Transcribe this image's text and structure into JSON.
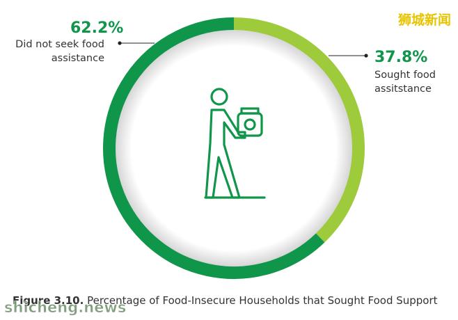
{
  "chart_data": {
    "type": "pie",
    "donut": true,
    "categories": [
      "Sought food assitstance",
      "Did not seek food assistance"
    ],
    "values": [
      37.8,
      62.2
    ],
    "value_labels": [
      "37.8%",
      "62.2%"
    ],
    "colors": [
      "#9dcb3c",
      "#10964a"
    ],
    "figure_label": "Figure 3.10.",
    "title": "Percentage of Food-Insecure Households that Sought Food Support"
  },
  "watermarks": [
    "狮城新闻",
    "shicheng.news"
  ]
}
